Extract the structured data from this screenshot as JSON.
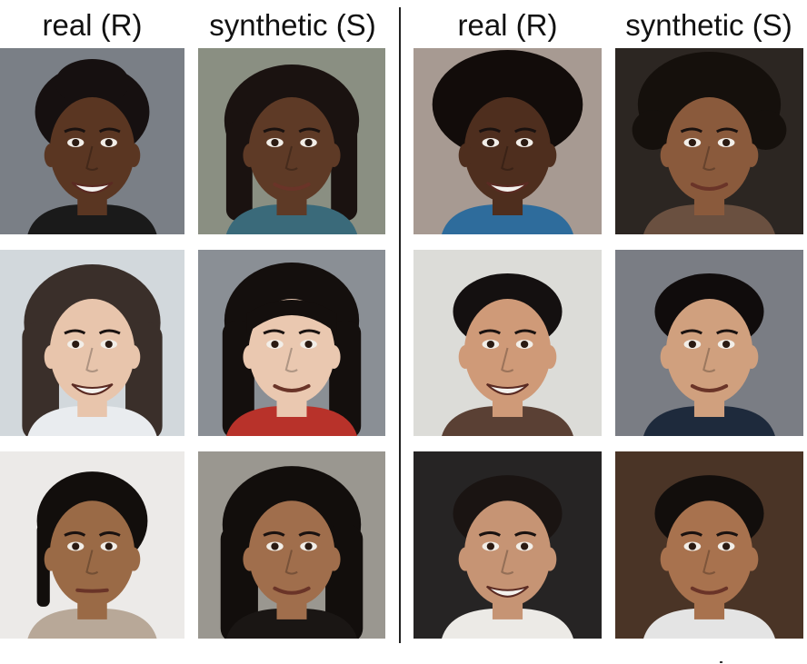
{
  "headers": {
    "left_real": "real (R)",
    "left_synthetic": "synthetic (S)",
    "right_real": "real (R)",
    "right_synthetic": "synthetic (S)"
  },
  "photos": [
    {
      "kind": "real",
      "group": "left",
      "row": 1,
      "bg": "#7a7f86",
      "skin": "#5a3622",
      "hair": "#161010",
      "hair_style": "short-updo",
      "cloth": "#1a1a1a",
      "smile": "wide"
    },
    {
      "kind": "synthetic",
      "group": "left",
      "row": 1,
      "bg": "#8a8f82",
      "skin": "#5e3a26",
      "hair": "#1a1210",
      "hair_style": "braids",
      "cloth": "#3a6a7a",
      "smile": "soft"
    },
    {
      "kind": "real",
      "group": "right",
      "row": 1,
      "bg": "#a79a92",
      "skin": "#4e2e1e",
      "hair": "#120c0a",
      "hair_style": "afro",
      "cloth": "#2e6c9c",
      "smile": "wide"
    },
    {
      "kind": "synthetic",
      "group": "right",
      "row": 1,
      "bg": "#2c2622",
      "skin": "#8a5a3c",
      "hair": "#15100c",
      "hair_style": "curly",
      "cloth": "#6a5040",
      "smile": "soft"
    },
    {
      "kind": "real",
      "group": "left",
      "row": 2,
      "bg": "#d2d8dc",
      "skin": "#e8c5ac",
      "hair": "#3a2f2a",
      "hair_style": "long",
      "cloth": "#e9ecef",
      "smile": "wide"
    },
    {
      "kind": "synthetic",
      "group": "left",
      "row": 2,
      "bg": "#8a8f95",
      "skin": "#eac8b0",
      "hair": "#140f0d",
      "hair_style": "long-bangs",
      "cloth": "#b8322a",
      "smile": "soft"
    },
    {
      "kind": "real",
      "group": "right",
      "row": 2,
      "bg": "#dcdcd8",
      "skin": "#cf9a78",
      "hair": "#141010",
      "hair_style": "short",
      "cloth": "#5a4034",
      "smile": "wide"
    },
    {
      "kind": "synthetic",
      "group": "right",
      "row": 2,
      "bg": "#7a7d84",
      "skin": "#d0a07e",
      "hair": "#100c0c",
      "hair_style": "short",
      "cloth": "#1e2a3c",
      "smile": "soft"
    },
    {
      "kind": "real",
      "group": "left",
      "row": 3,
      "bg": "#eceae8",
      "skin": "#9a6a46",
      "hair": "#120e0c",
      "hair_style": "pulled-back",
      "cloth": "#b8a898",
      "smile": "none"
    },
    {
      "kind": "synthetic",
      "group": "left",
      "row": 3,
      "bg": "#9a9790",
      "skin": "#a06e4c",
      "hair": "#120e0c",
      "hair_style": "long",
      "cloth": "#1a1614",
      "smile": "soft"
    },
    {
      "kind": "real",
      "group": "right",
      "row": 3,
      "bg": "#262424",
      "skin": "#c69474",
      "hair": "#1a1412",
      "hair_style": "short",
      "cloth": "#eceae6",
      "smile": "wide"
    },
    {
      "kind": "synthetic",
      "group": "right",
      "row": 3,
      "bg": "#4a3426",
      "skin": "#a8724e",
      "hair": "#120e0c",
      "hair_style": "short",
      "cloth": "#e4e4e4",
      "smile": "soft"
    }
  ]
}
